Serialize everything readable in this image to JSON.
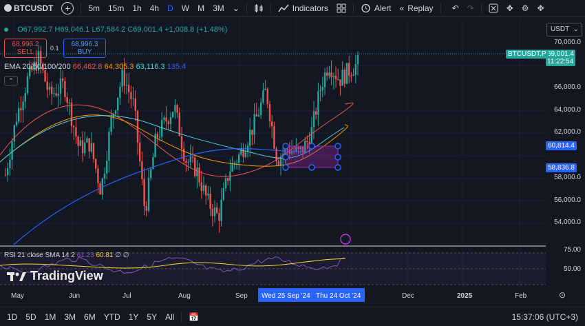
{
  "toolbar": {
    "symbol": "BTCUSDT",
    "intervals": [
      "5m",
      "15m",
      "1h",
      "4h",
      "D",
      "W",
      "M",
      "3M"
    ],
    "selected_interval": "D",
    "indicators_label": "Indicators",
    "alert_label": "Alert",
    "replay_label": "Replay"
  },
  "ohlc": {
    "open": "O67,992.7",
    "high": "H69,046.1",
    "low": "L67,584.2",
    "close": "C69,001.4",
    "change": "+1,008.8 (+1.48%)"
  },
  "sell": {
    "price": "68,996.2",
    "label": "SELL"
  },
  "spread": "0.1",
  "buy": {
    "price": "68,996.3",
    "label": "BUY"
  },
  "ema": {
    "label": "EMA 20/50/100/200",
    "v20": "66,462.8",
    "v50": "64,305.3",
    "v100": "63,116.3",
    "v200": "135.4"
  },
  "price_axis": {
    "currency": "USDT",
    "ticks": [
      "70,000.0",
      "66,000.0",
      "64,000.0",
      "62,000.0",
      "58,000.0",
      "56,000.0",
      "54,000.0"
    ],
    "last_symbol": "BTCUSDT.P",
    "last_price": "69,001.4",
    "countdown": "11:22:54",
    "box_top": "60,814.4",
    "box_bottom": "58,836.8"
  },
  "rsi": {
    "label": "RSI 21 close SMA 14 2",
    "v1": "61.23",
    "v2": "60.81",
    "v3": "∅ ∅",
    "ticks": [
      "75.00",
      "50.00"
    ]
  },
  "timeaxis": {
    "labels": [
      "May",
      "Jun",
      "Jul",
      "Aug",
      "Sep",
      "Dec",
      "2025",
      "Feb"
    ],
    "range_start": "Wed 25 Sep '24",
    "range_end": "Thu 24 Oct '24"
  },
  "bottom": {
    "ranges": [
      "1D",
      "5D",
      "1M",
      "3M",
      "6M",
      "YTD",
      "1Y",
      "5Y",
      "All"
    ],
    "clock": "15:37:06 (UTC+3)"
  },
  "watermark": "TradingView",
  "colors": {
    "bg": "#131722",
    "up": "#26a69a",
    "down": "#ef5350",
    "ema20": "#ef5350",
    "ema50": "#ff9800",
    "ema100": "#4dd0e1",
    "ema200": "#2962ff",
    "box": "#9c27b0",
    "rsi": "#7e57c2",
    "rsi_ma": "#fdd835"
  }
}
